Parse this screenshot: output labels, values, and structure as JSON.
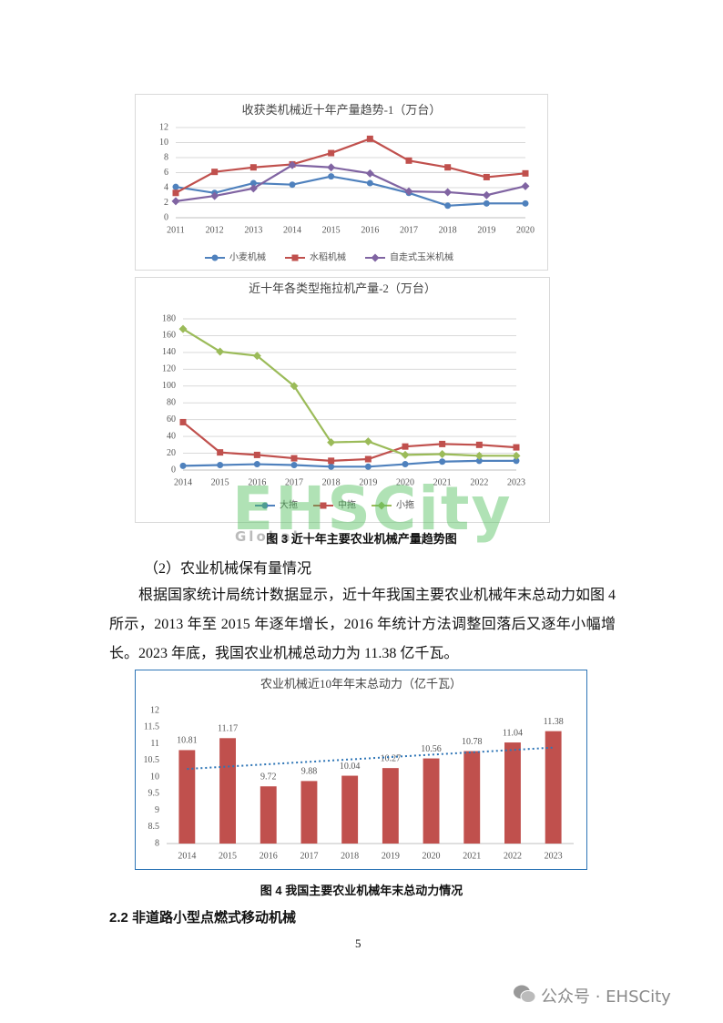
{
  "chart_data": [
    {
      "type": "line",
      "title": "收获类机械近十年产量趋势-1（万台）",
      "categories": [
        "2011",
        "2012",
        "2013",
        "2014",
        "2015",
        "2016",
        "2017",
        "2018",
        "2019",
        "2020"
      ],
      "series": [
        {
          "name": "小麦机械",
          "color": "#4f81bd",
          "marker": "circle",
          "values": [
            4.1,
            3.3,
            4.6,
            4.4,
            5.5,
            4.6,
            3.3,
            1.6,
            1.9,
            1.9
          ]
        },
        {
          "name": "水稻机械",
          "color": "#c0504d",
          "marker": "square",
          "values": [
            3.3,
            6.1,
            6.7,
            7.1,
            8.6,
            10.5,
            7.6,
            6.7,
            5.4,
            5.9
          ]
        },
        {
          "name": "自走式玉米机械",
          "color": "#8064a2",
          "marker": "diamond",
          "values": [
            2.2,
            2.9,
            3.9,
            7.0,
            6.7,
            5.9,
            3.5,
            3.4,
            3.0,
            4.2
          ]
        }
      ],
      "ylim": [
        0,
        12
      ],
      "yticks": [
        0,
        2,
        4,
        6,
        8,
        10,
        12
      ],
      "grid": true,
      "legend": "bottom"
    },
    {
      "type": "line",
      "title": "近十年各类型拖拉机产量-2（万台）",
      "categories": [
        "2014",
        "2015",
        "2016",
        "2017",
        "2018",
        "2019",
        "2020",
        "2021",
        "2022",
        "2023"
      ],
      "series": [
        {
          "name": "大拖",
          "color": "#4f81bd",
          "marker": "circle",
          "values": [
            5,
            6,
            7,
            6,
            4,
            4,
            7,
            10,
            11,
            11
          ]
        },
        {
          "name": "中拖",
          "color": "#c0504d",
          "marker": "square",
          "values": [
            57,
            21,
            18,
            14,
            11,
            13,
            28,
            31,
            30,
            27
          ]
        },
        {
          "name": "小拖",
          "color": "#9bbb59",
          "marker": "diamond",
          "values": [
            168,
            141,
            136,
            100,
            33,
            34,
            18,
            19,
            17,
            17
          ]
        }
      ],
      "ylim": [
        0,
        180
      ],
      "yticks": [
        0,
        20,
        40,
        60,
        80,
        100,
        120,
        140,
        160,
        180
      ],
      "grid": true,
      "legend": "bottom"
    },
    {
      "type": "bar",
      "title": "农业机械近10年年末总动力（亿千瓦）",
      "categories": [
        "2014",
        "2015",
        "2016",
        "2017",
        "2018",
        "2019",
        "2020",
        "2021",
        "2022",
        "2023"
      ],
      "values": [
        10.81,
        11.17,
        9.72,
        9.88,
        10.04,
        10.27,
        10.56,
        10.78,
        11.04,
        11.38
      ],
      "color": "#c0504d",
      "ylim": [
        8,
        12
      ],
      "yticks": [
        8,
        8.5,
        9,
        9.5,
        10,
        10.5,
        11,
        11.5,
        12
      ],
      "grid": false,
      "trendline": true,
      "trendline_color": "#2e75b6"
    }
  ],
  "document": {
    "figure3_caption": "图 3  近十年主要农业机械产量趋势图",
    "section_heading": "（2）农业机械保有量情况",
    "paragraph": "根据国家统计局统计数据显示，近十年我国主要农业机械年末总动力如图 4 所示，2013 年至 2015 年逐年增长，2016 年统计方法调整回落后又逐年小幅增长。2023 年底，我国农业机械总动力为 11.38 亿千瓦。",
    "figure4_caption": "图 4  我国主要农业机械年末总动力情况",
    "subsection_heading": "2.2  非道路小型点燃式移动机械",
    "page_number": "5",
    "watermark": "EHSCity",
    "watermark_sub": "Global",
    "footer_account": "公众号 · EHSCity"
  }
}
